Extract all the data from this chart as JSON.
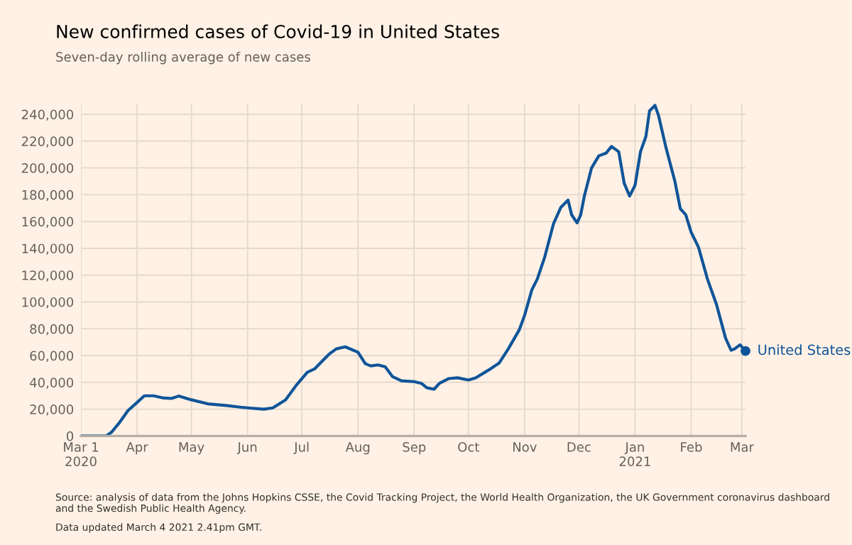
{
  "chart_data": {
    "type": "line",
    "title": "New confirmed cases of Covid-19 in United States",
    "subtitle": "Seven-day rolling average of new cases",
    "annotations": [
      "Source: analysis of data from the Johns Hopkins CSSE, the Covid Tracking Project, the World Health Organization, the UK Government coronavirus dashboard and the Swedish Public Health Agency.",
      "Data updated March 4 2021 2.41pm GMT."
    ],
    "x": [
      "2020-03-01",
      "2020-03-15",
      "2020-03-18",
      "2020-03-22",
      "2020-03-27",
      "2020-04-01",
      "2020-04-05",
      "2020-04-10",
      "2020-04-15",
      "2020-04-20",
      "2020-04-24",
      "2020-05-01",
      "2020-05-10",
      "2020-05-20",
      "2020-05-28",
      "2020-06-01",
      "2020-06-10",
      "2020-06-15",
      "2020-06-22",
      "2020-06-28",
      "2020-07-04",
      "2020-07-08",
      "2020-07-12",
      "2020-07-16",
      "2020-07-20",
      "2020-07-25",
      "2020-08-01",
      "2020-08-05",
      "2020-08-08",
      "2020-08-12",
      "2020-08-16",
      "2020-08-20",
      "2020-08-25",
      "2020-09-01",
      "2020-09-05",
      "2020-09-08",
      "2020-09-12",
      "2020-09-15",
      "2020-09-20",
      "2020-09-25",
      "2020-10-01",
      "2020-10-05",
      "2020-10-12",
      "2020-10-18",
      "2020-10-23",
      "2020-10-29",
      "2020-11-01",
      "2020-11-05",
      "2020-11-08",
      "2020-11-12",
      "2020-11-17",
      "2020-11-21",
      "2020-11-25",
      "2020-11-27",
      "2020-11-30",
      "2020-12-02",
      "2020-12-04",
      "2020-12-08",
      "2020-12-12",
      "2020-12-16",
      "2020-12-19",
      "2020-12-23",
      "2020-12-26",
      "2020-12-29",
      "2021-01-01",
      "2021-01-04",
      "2021-01-07",
      "2021-01-09",
      "2021-01-12",
      "2021-01-14",
      "2021-01-18",
      "2021-01-23",
      "2021-01-26",
      "2021-01-29",
      "2021-02-01",
      "2021-02-05",
      "2021-02-10",
      "2021-02-15",
      "2021-02-20",
      "2021-02-23",
      "2021-02-25",
      "2021-02-28",
      "2021-03-01",
      "2021-03-03"
    ],
    "series": [
      {
        "name": "United States",
        "color": "#0f5499",
        "values": [
          0,
          0,
          3000,
          9500,
          19000,
          25000,
          30000,
          30000,
          28500,
          28000,
          29800,
          27000,
          24000,
          22800,
          21500,
          21000,
          20000,
          21000,
          27000,
          38000,
          47500,
          50000,
          55500,
          61000,
          65000,
          66500,
          62500,
          54000,
          52300,
          53000,
          51700,
          44400,
          41200,
          40600,
          39300,
          36000,
          34900,
          39300,
          42800,
          43400,
          41800,
          43400,
          49100,
          54500,
          65000,
          79000,
          90000,
          109000,
          117000,
          133000,
          158500,
          170500,
          176000,
          165000,
          159000,
          165000,
          179000,
          200000,
          209000,
          211000,
          216000,
          212000,
          188600,
          179000,
          187000,
          212000,
          223500,
          242500,
          246600,
          239000,
          215600,
          190000,
          169600,
          165000,
          152000,
          141000,
          117000,
          98000,
          73000,
          64000,
          65000,
          68000,
          66500,
          63400
        ]
      }
    ],
    "xlim": [
      "2020-03-01",
      "2021-03-03"
    ],
    "xticks": [
      {
        "value": "2020-03-01",
        "label": "Mar 1\n2020"
      },
      {
        "value": "2020-04-01",
        "label": "Apr"
      },
      {
        "value": "2020-05-01",
        "label": "May"
      },
      {
        "value": "2020-06-01",
        "label": "Jun"
      },
      {
        "value": "2020-07-01",
        "label": "Jul"
      },
      {
        "value": "2020-08-01",
        "label": "Aug"
      },
      {
        "value": "2020-09-01",
        "label": "Sep"
      },
      {
        "value": "2020-10-01",
        "label": "Oct"
      },
      {
        "value": "2020-11-01",
        "label": "Nov"
      },
      {
        "value": "2020-12-01",
        "label": "Dec"
      },
      {
        "value": "2021-01-01",
        "label": "Jan\n2021"
      },
      {
        "value": "2021-02-01",
        "label": "Feb"
      },
      {
        "value": "2021-03-01",
        "label": "Mar"
      }
    ],
    "ylim": [
      0,
      248000
    ],
    "yticks": [
      0,
      {
        "value": 20000,
        "label": "20,000"
      },
      {
        "value": 40000,
        "label": "40,000"
      },
      {
        "value": 60000,
        "label": "60,000"
      },
      {
        "value": 80000,
        "label": "80,000"
      },
      {
        "value": 100000,
        "label": "100,000"
      },
      {
        "value": 120000,
        "label": "120,000"
      },
      {
        "value": 140000,
        "label": "140,000"
      },
      {
        "value": 160000,
        "label": "160,000"
      },
      {
        "value": 180000,
        "label": "180,000"
      },
      {
        "value": 200000,
        "label": "200,000"
      },
      {
        "value": 220000,
        "label": "220,000"
      },
      {
        "value": 240000,
        "label": "240,000"
      }
    ],
    "grid": true,
    "legend": false,
    "marker": "none",
    "line_style": "solid"
  }
}
